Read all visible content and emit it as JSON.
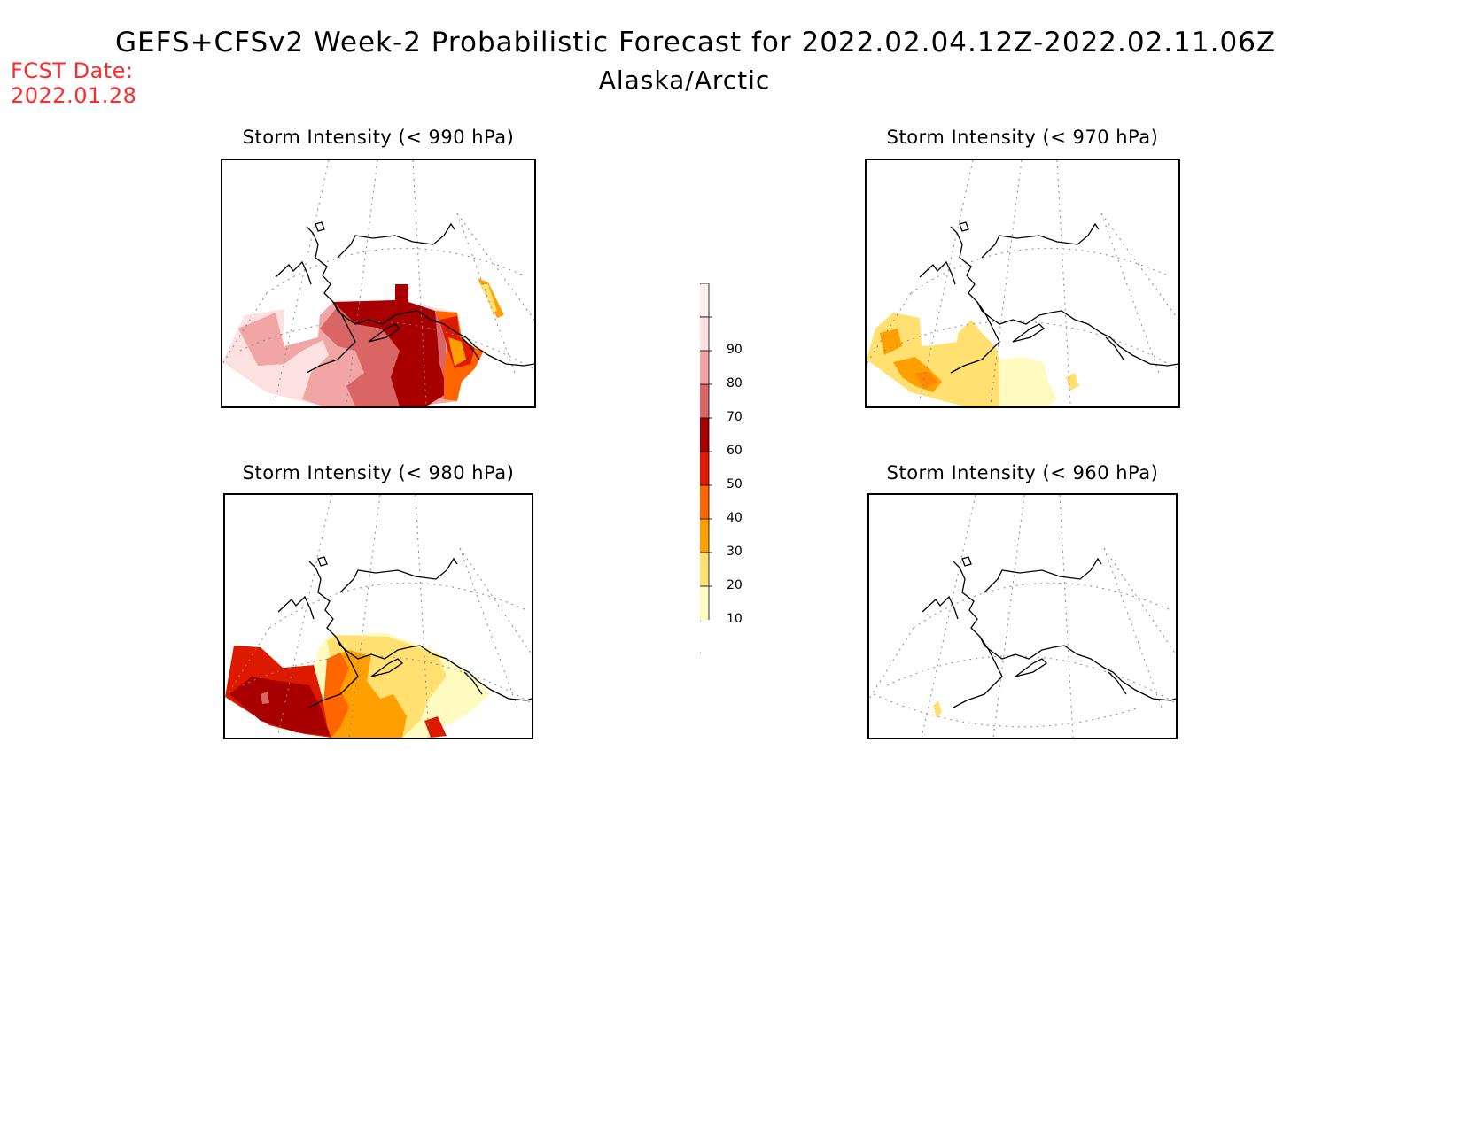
{
  "header": {
    "title": "GEFS+CFSv2 Week-2 Probabilistic Forecast for 2022.02.04.12Z-2022.02.11.06Z",
    "subtitle": "Alaska/Arctic",
    "fcst_label": "FCST Date:",
    "fcst_date": "2022.01.28"
  },
  "panels": [
    {
      "id": "p990",
      "title": "Storm Intensity (< 990 hPa)"
    },
    {
      "id": "p970",
      "title": "Storm Intensity (< 970 hPa)"
    },
    {
      "id": "p980",
      "title": "Storm Intensity (< 980 hPa)"
    },
    {
      "id": "p960",
      "title": "Storm Intensity (< 960 hPa)"
    }
  ],
  "colorbar": {
    "levels": [
      "90",
      "80",
      "70",
      "60",
      "50",
      "40",
      "30",
      "20",
      "10"
    ],
    "colors": [
      "#fde0e0",
      "#f2a5a5",
      "#d96565",
      "#a80000",
      "#dd1a00",
      "#ff6600",
      "#ffa000",
      "#ffe070",
      "#fffac0"
    ]
  }
}
